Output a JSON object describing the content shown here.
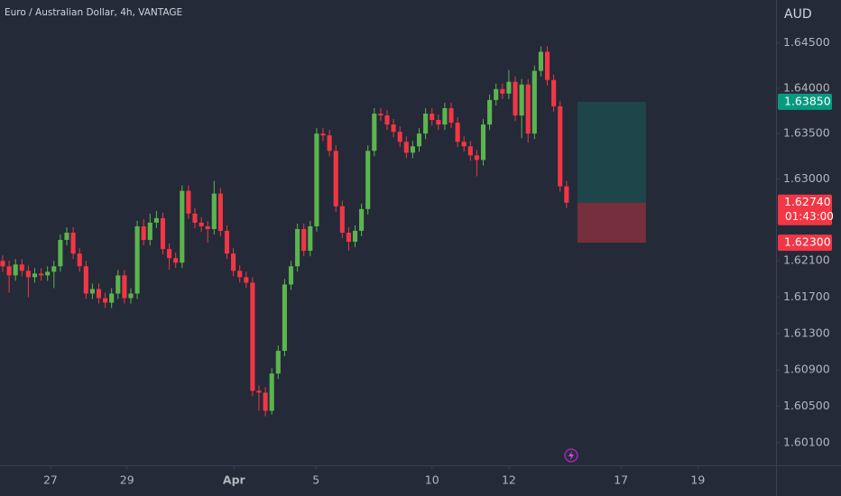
{
  "chart_data": {
    "type": "candlestick",
    "title": "Euro / Australian Dollar, 4h, VANTAGE",
    "currency": "AUD",
    "up_color": "#5cb44e",
    "down_color": "#f23645",
    "open": [
      1.621,
      1.6204,
      1.6194,
      1.6206,
      1.6199,
      1.6192,
      1.6196,
      1.6194,
      1.6198,
      1.6204,
      1.6233,
      1.6241,
      1.6218,
      1.6204,
      1.6174,
      1.6179,
      1.6169,
      1.6164,
      1.6174,
      1.6194,
      1.6169,
      1.6174,
      1.6248,
      1.6233,
      1.6252,
      1.6257,
      1.6223,
      1.6213,
      1.6208,
      1.6287,
      1.6262,
      1.6252,
      1.6248,
      1.6245,
      1.6284,
      1.6243,
      1.6218,
      1.6199,
      1.6192,
      1.6186,
      1.6067,
      1.6065,
      1.6045,
      1.6086,
      1.6111,
      1.6184,
      1.6204,
      1.6245,
      1.6221,
      1.6248,
      1.635,
      1.6348,
      1.6331,
      1.627,
      1.6241,
      1.6231,
      1.6243,
      1.6267,
      1.6331,
      1.6372,
      1.637,
      1.636,
      1.6352,
      1.6341,
      1.6329,
      1.6336,
      1.635,
      1.6372,
      1.6365,
      1.636,
      1.6378,
      1.6362,
      1.6341,
      1.6336,
      1.6326,
      1.6321,
      1.636,
      1.6387,
      1.6399,
      1.6394,
      1.6407,
      1.637,
      1.6404,
      1.635,
      1.6419,
      1.644,
      1.6409,
      1.638,
      1.6292
    ],
    "high": [
      1.6216,
      1.621,
      1.6212,
      1.6212,
      1.6205,
      1.6202,
      1.6202,
      1.6204,
      1.621,
      1.6239,
      1.6247,
      1.6247,
      1.6224,
      1.621,
      1.6185,
      1.6185,
      1.6175,
      1.618,
      1.62,
      1.62,
      1.618,
      1.6254,
      1.6256,
      1.6262,
      1.6265,
      1.6263,
      1.6229,
      1.6219,
      1.6293,
      1.6293,
      1.6268,
      1.6258,
      1.6254,
      1.6298,
      1.629,
      1.6249,
      1.6224,
      1.6205,
      1.6198,
      1.6192,
      1.6073,
      1.6071,
      1.6092,
      1.6117,
      1.619,
      1.621,
      1.6251,
      1.6251,
      1.6254,
      1.6356,
      1.6356,
      1.6354,
      1.6337,
      1.6276,
      1.6247,
      1.6249,
      1.6273,
      1.6337,
      1.6378,
      1.6378,
      1.6376,
      1.6366,
      1.6358,
      1.6347,
      1.6342,
      1.6356,
      1.6378,
      1.6378,
      1.6371,
      1.6384,
      1.6384,
      1.6368,
      1.6347,
      1.6342,
      1.6332,
      1.6366,
      1.6393,
      1.6405,
      1.6405,
      1.642,
      1.6413,
      1.641,
      1.641,
      1.6425,
      1.6446,
      1.6446,
      1.6415,
      1.6386,
      1.6298
    ],
    "low": [
      1.6198,
      1.6175,
      1.6188,
      1.6193,
      1.617,
      1.6186,
      1.6188,
      1.6188,
      1.618,
      1.6198,
      1.6227,
      1.6212,
      1.6198,
      1.6168,
      1.6168,
      1.6163,
      1.6158,
      1.6158,
      1.6168,
      1.6163,
      1.6163,
      1.6168,
      1.6227,
      1.6227,
      1.6246,
      1.6217,
      1.62,
      1.6202,
      1.6202,
      1.6256,
      1.6246,
      1.6242,
      1.623,
      1.6239,
      1.6237,
      1.6212,
      1.6193,
      1.6186,
      1.618,
      1.6061,
      1.6045,
      1.6039,
      1.6041,
      1.608,
      1.6105,
      1.6178,
      1.6198,
      1.6215,
      1.6215,
      1.6242,
      1.6342,
      1.6325,
      1.6264,
      1.6235,
      1.6221,
      1.6225,
      1.6237,
      1.6261,
      1.6325,
      1.6364,
      1.6354,
      1.6346,
      1.6335,
      1.6323,
      1.6323,
      1.633,
      1.6344,
      1.6359,
      1.6354,
      1.6354,
      1.6356,
      1.6335,
      1.633,
      1.632,
      1.6303,
      1.6315,
      1.6354,
      1.6381,
      1.6388,
      1.6388,
      1.6364,
      1.6345,
      1.634,
      1.6344,
      1.6413,
      1.6403,
      1.6374,
      1.6286,
      1.6268
    ],
    "close": [
      1.6204,
      1.6194,
      1.6206,
      1.6199,
      1.6192,
      1.6196,
      1.6194,
      1.6198,
      1.6204,
      1.6233,
      1.6241,
      1.6218,
      1.6204,
      1.6174,
      1.6179,
      1.6169,
      1.6164,
      1.6174,
      1.6194,
      1.6169,
      1.6174,
      1.6248,
      1.6233,
      1.6252,
      1.6257,
      1.6223,
      1.6213,
      1.6208,
      1.6287,
      1.6262,
      1.6252,
      1.6248,
      1.6245,
      1.6284,
      1.6243,
      1.6218,
      1.6199,
      1.6192,
      1.6186,
      1.6067,
      1.6065,
      1.6045,
      1.6086,
      1.6111,
      1.6184,
      1.6204,
      1.6245,
      1.6221,
      1.6248,
      1.635,
      1.6348,
      1.6331,
      1.627,
      1.6241,
      1.6231,
      1.6243,
      1.6267,
      1.6331,
      1.6372,
      1.637,
      1.636,
      1.6352,
      1.6341,
      1.6329,
      1.6336,
      1.635,
      1.6372,
      1.6365,
      1.636,
      1.6378,
      1.6362,
      1.6341,
      1.6336,
      1.6326,
      1.6321,
      1.636,
      1.6387,
      1.6399,
      1.6394,
      1.6407,
      1.637,
      1.6404,
      1.635,
      1.6419,
      1.644,
      1.6409,
      1.638,
      1.6292,
      1.6274
    ],
    "xlim": [
      -0.42,
      120.7
    ],
    "xticks": [
      {
        "value": 7.46,
        "label": "27"
      },
      {
        "value": 19.4,
        "label": "29"
      },
      {
        "value": 36.1,
        "label": "Apr"
      },
      {
        "value": 48.9,
        "label": "5"
      },
      {
        "value": 67.0,
        "label": "10"
      },
      {
        "value": 79.0,
        "label": "12"
      },
      {
        "value": 96.5,
        "label": "17"
      },
      {
        "value": 108.5,
        "label": "19"
      }
    ],
    "ylim": [
      1.5985,
      1.6497
    ],
    "yticks": [
      {
        "value": 1.645,
        "label": "1.64500"
      },
      {
        "value": 1.64,
        "label": "1.64000"
      },
      {
        "value": 1.635,
        "label": "1.63500"
      },
      {
        "value": 1.63,
        "label": "1.63000"
      },
      {
        "value": 1.621,
        "label": "1.62100"
      },
      {
        "value": 1.617,
        "label": "1.61700"
      },
      {
        "value": 1.613,
        "label": "1.61300"
      },
      {
        "value": 1.609,
        "label": "1.60900"
      },
      {
        "value": 1.605,
        "label": "1.60500"
      },
      {
        "value": 1.601,
        "label": "1.60100"
      }
    ],
    "position": {
      "start": 89.7,
      "end": 100.4,
      "target": {
        "value": 1.6385,
        "label": "1.63850",
        "color": "#089981"
      },
      "entry": {
        "value": 1.6274,
        "label": "1.62740",
        "color": "#f23645"
      },
      "stop": {
        "value": 1.623,
        "label": "1.62300",
        "color": "#f23645"
      },
      "countdown": "01:43:00"
    }
  }
}
